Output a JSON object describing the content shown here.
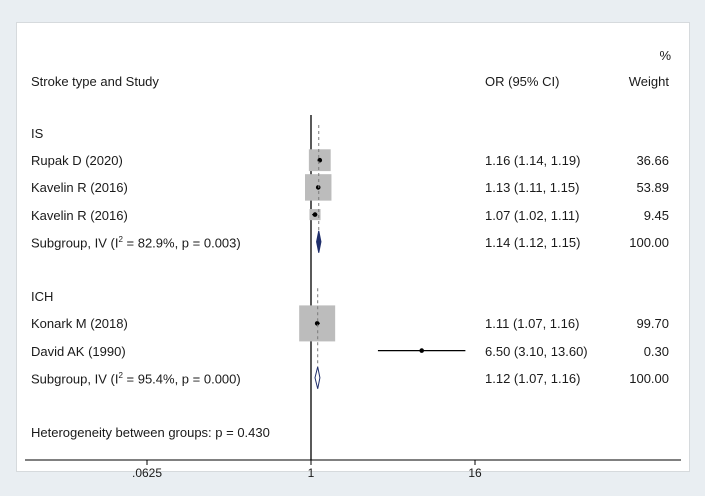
{
  "chart_data": {
    "type": "forest",
    "header": {
      "study_label": "Stroke type and Study",
      "or_label": "OR (95% CI)",
      "weight_pct": "%",
      "weight_label": "Weight"
    },
    "x_scale": "log",
    "x_ticks": [
      {
        "value": 0.0625,
        "label": ".0625"
      },
      {
        "value": 1,
        "label": "1"
      },
      {
        "value": 16,
        "label": "16"
      }
    ],
    "null_line": 1,
    "rows": [
      {
        "kind": "group",
        "label": "IS"
      },
      {
        "kind": "study",
        "label": "Rupak D (2020)",
        "or": 1.16,
        "lo": 1.14,
        "hi": 1.19,
        "ci_text": "1.16 (1.14, 1.19)",
        "weight": 36.66,
        "weight_text": "36.66"
      },
      {
        "kind": "study",
        "label": "Kavelin R (2016)",
        "or": 1.13,
        "lo": 1.11,
        "hi": 1.15,
        "ci_text": "1.13 (1.11, 1.15)",
        "weight": 53.89,
        "weight_text": "53.89"
      },
      {
        "kind": "study",
        "label": "Kavelin R (2016)",
        "or": 1.07,
        "lo": 1.02,
        "hi": 1.11,
        "ci_text": "1.07 (1.02, 1.11)",
        "weight": 9.45,
        "weight_text": "9.45"
      },
      {
        "kind": "subgroup",
        "label_pre": "Subgroup, IV (I",
        "label_sup": "2",
        "label_post": " = 82.9%, p = 0.003)",
        "or": 1.14,
        "lo": 1.12,
        "hi": 1.15,
        "ci_text": "1.14 (1.12, 1.15)",
        "weight_text": "100.00",
        "fill": "#1f2e6b"
      },
      {
        "kind": "blank"
      },
      {
        "kind": "group",
        "label": "ICH"
      },
      {
        "kind": "study",
        "label": "Konark M (2018)",
        "or": 1.11,
        "lo": 1.07,
        "hi": 1.16,
        "ci_text": "1.11 (1.07, 1.16)",
        "weight": 99.7,
        "weight_text": "99.70"
      },
      {
        "kind": "study",
        "label": "David AK (1990)",
        "or": 6.5,
        "lo": 3.1,
        "hi": 13.6,
        "ci_text": "6.50 (3.10, 13.60)",
        "weight": 0.3,
        "weight_text": "0.30"
      },
      {
        "kind": "subgroup",
        "label_pre": "Subgroup, IV (I",
        "label_sup": "2",
        "label_post": " = 95.4%, p = 0.000)",
        "or": 1.12,
        "lo": 1.07,
        "hi": 1.16,
        "ci_text": "1.12 (1.07, 1.16)",
        "weight_text": "100.00",
        "fill": "#ffffff"
      },
      {
        "kind": "blank"
      },
      {
        "kind": "footer",
        "label": "Heterogeneity between groups: p = 0.430"
      }
    ],
    "colors": {
      "box": "#bcbcbc",
      "line": "#000000",
      "dashed": "#7a7a7a",
      "diamond_edge": "#1f2e6b"
    }
  }
}
